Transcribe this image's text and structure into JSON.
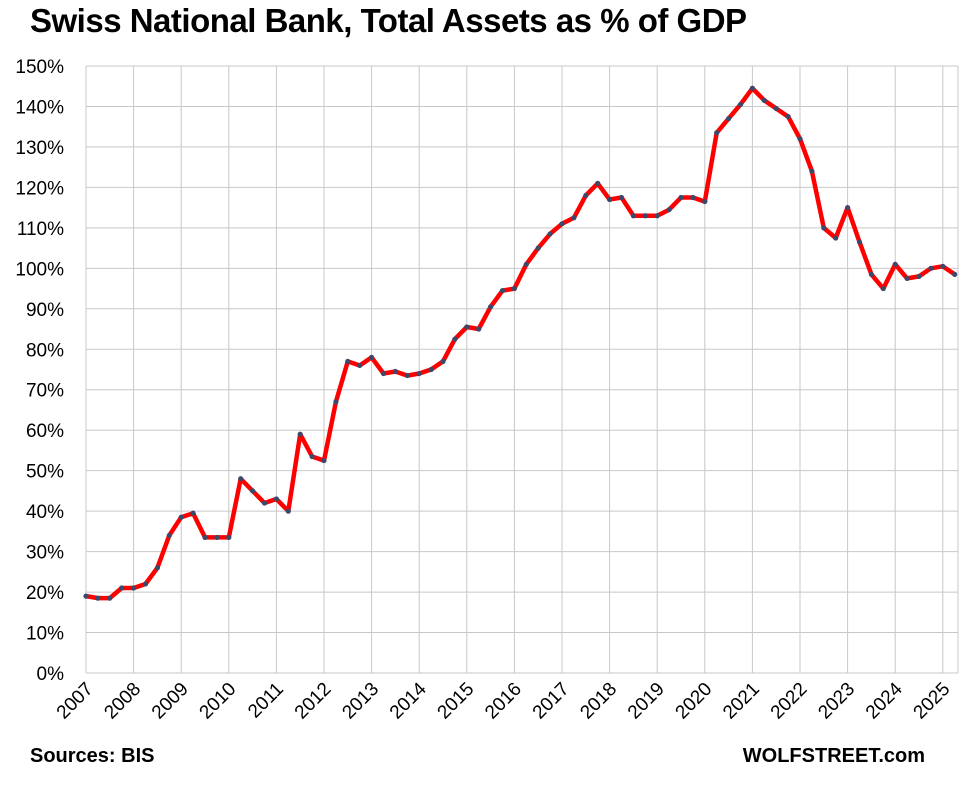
{
  "title": "Swiss National Bank, Total Assets as % of GDP",
  "footer": {
    "source": "Sources: BIS",
    "brand": "WOLFSTREET.com"
  },
  "colors": {
    "line": "#ff0000",
    "marker": "#3b4a6b",
    "grid": "#c8c8c8"
  },
  "chart_data": {
    "type": "line",
    "title": "Swiss National Bank, Total Assets as % of GDP",
    "xlabel": "",
    "ylabel": "",
    "ylim": [
      0,
      150
    ],
    "xlim": [
      2007,
      2025.25
    ],
    "y_ticks": [
      "0%",
      "10%",
      "20%",
      "30%",
      "40%",
      "50%",
      "60%",
      "70%",
      "80%",
      "90%",
      "100%",
      "110%",
      "120%",
      "130%",
      "140%",
      "150%"
    ],
    "x_ticks": [
      "2007",
      "2008",
      "2009",
      "2010",
      "2011",
      "2012",
      "2013",
      "2014",
      "2015",
      "2016",
      "2017",
      "2018",
      "2019",
      "2020",
      "2021",
      "2022",
      "2023",
      "2024",
      "2025"
    ],
    "grid": true,
    "legend": "none",
    "series": [
      {
        "x": [
          2007.0,
          2007.25,
          2007.5,
          2007.75,
          2008.0,
          2008.25,
          2008.5,
          2008.75,
          2009.0,
          2009.25,
          2009.5,
          2009.75,
          2010.0,
          2010.25,
          2010.5,
          2010.75,
          2011.0,
          2011.25,
          2011.5,
          2011.75,
          2012.0,
          2012.25,
          2012.5,
          2012.75,
          2013.0,
          2013.25,
          2013.5,
          2013.75,
          2014.0,
          2014.25,
          2014.5,
          2014.75,
          2015.0,
          2015.25,
          2015.5,
          2015.75,
          2016.0,
          2016.25,
          2016.5,
          2016.75,
          2017.0,
          2017.25,
          2017.5,
          2017.75,
          2018.0,
          2018.25,
          2018.5,
          2018.75,
          2019.0,
          2019.25,
          2019.5,
          2019.75,
          2020.0,
          2020.25,
          2020.5,
          2020.75,
          2021.0,
          2021.25,
          2021.5,
          2021.75,
          2022.0,
          2022.25,
          2022.5,
          2022.75,
          2023.0,
          2023.25,
          2023.5,
          2023.75,
          2024.0,
          2024.25,
          2024.5,
          2024.75,
          2025.0,
          2025.25
        ],
        "values": [
          19,
          18.5,
          18.5,
          21,
          21,
          22,
          26,
          34,
          38.5,
          39.5,
          33.5,
          33.5,
          33.5,
          48,
          45,
          42,
          43,
          40,
          59,
          53.5,
          52.5,
          67,
          77,
          76,
          78,
          74,
          74.5,
          73.5,
          74,
          75,
          77,
          82.5,
          85.5,
          85,
          90.5,
          94.5,
          95,
          101,
          105,
          108.5,
          111,
          112.5,
          118,
          121,
          117,
          117.5,
          113,
          113,
          113,
          114.5,
          117.5,
          117.5,
          116.5,
          133.5,
          137,
          140.5,
          144.5,
          141.5,
          139.5,
          137.5,
          132,
          124,
          110,
          107.5,
          115,
          106.5,
          98.5,
          95,
          101,
          97.5,
          98,
          100,
          100.5,
          98.5
        ]
      }
    ]
  }
}
